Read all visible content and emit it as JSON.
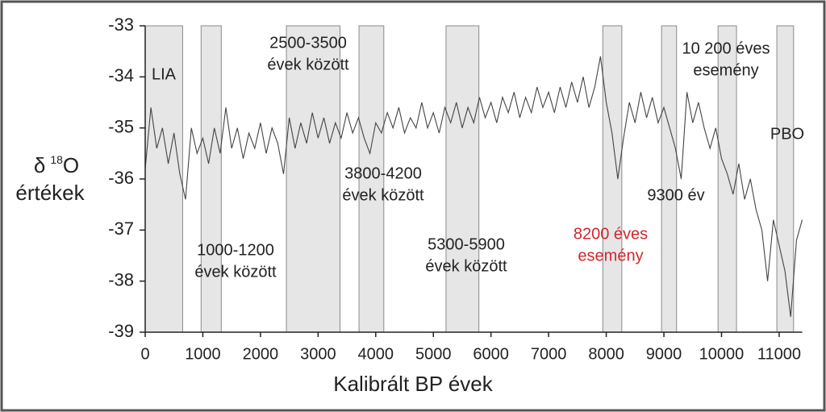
{
  "chart_data": {
    "type": "line",
    "y_label": {
      "symbol": "δ",
      "superscript": "18",
      "element": "O",
      "second_line": "értékek"
    },
    "x_label": "Kalibrált BP évek",
    "xlim": [
      0,
      11400
    ],
    "ylim": [
      -39,
      -33
    ],
    "xticks": [
      0,
      1000,
      2000,
      3000,
      4000,
      5000,
      6000,
      7000,
      8000,
      9000,
      10000,
      11000
    ],
    "yticks": [
      -33,
      -34,
      -35,
      -36,
      -37,
      -38,
      -39
    ],
    "color": "#444444",
    "band_color": "#e6e6e6",
    "bands": [
      [
        0,
        650
      ],
      [
        970,
        1320
      ],
      [
        2450,
        3380
      ],
      [
        3710,
        4140
      ],
      [
        5220,
        5790
      ],
      [
        7940,
        8270
      ],
      [
        8960,
        9220
      ],
      [
        9940,
        10260
      ],
      [
        10960,
        11250
      ]
    ],
    "annotations": [
      {
        "lines": [
          "LIA"
        ],
        "color": "#222222"
      },
      {
        "lines": [
          "1000-1200",
          "évek között"
        ],
        "color": "#222222"
      },
      {
        "lines": [
          "2500-3500",
          "évek között"
        ],
        "color": "#222222"
      },
      {
        "lines": [
          "3800-4200",
          "évek között"
        ],
        "color": "#222222"
      },
      {
        "lines": [
          "5300-5900",
          "évek között"
        ],
        "color": "#222222"
      },
      {
        "lines": [
          "8200 éves",
          "esemény"
        ],
        "color": "#d4262d"
      },
      {
        "lines": [
          "9300 év"
        ],
        "color": "#222222"
      },
      {
        "lines": [
          "10 200 éves",
          "esemény"
        ],
        "color": "#222222"
      },
      {
        "lines": [
          "PBO"
        ],
        "color": "#222222"
      }
    ],
    "x": [
      0,
      100,
      200,
      300,
      400,
      500,
      600,
      700,
      800,
      900,
      1000,
      1100,
      1200,
      1300,
      1400,
      1500,
      1600,
      1700,
      1800,
      1900,
      2000,
      2100,
      2200,
      2300,
      2400,
      2500,
      2600,
      2700,
      2800,
      2900,
      3000,
      3100,
      3200,
      3300,
      3400,
      3500,
      3600,
      3700,
      3800,
      3900,
      4000,
      4100,
      4200,
      4300,
      4400,
      4500,
      4600,
      4700,
      4800,
      4900,
      5000,
      5100,
      5200,
      5300,
      5400,
      5500,
      5600,
      5700,
      5800,
      5900,
      6000,
      6100,
      6200,
      6300,
      6400,
      6500,
      6600,
      6700,
      6800,
      6900,
      7000,
      7100,
      7200,
      7300,
      7400,
      7500,
      7600,
      7700,
      7800,
      7900,
      8000,
      8100,
      8200,
      8300,
      8400,
      8500,
      8600,
      8700,
      8800,
      8900,
      9000,
      9100,
      9200,
      9300,
      9400,
      9500,
      9600,
      9700,
      9800,
      9900,
      10000,
      10100,
      10200,
      10300,
      10400,
      10500,
      10600,
      10700,
      10800,
      10900,
      11000,
      11100,
      11200,
      11300,
      11400
    ],
    "values": [
      -35.8,
      -34.6,
      -35.4,
      -35.0,
      -35.7,
      -35.1,
      -35.9,
      -36.4,
      -35.0,
      -35.5,
      -35.2,
      -35.7,
      -35.0,
      -35.5,
      -34.6,
      -35.4,
      -35.0,
      -35.6,
      -35.1,
      -35.4,
      -34.9,
      -35.5,
      -35.0,
      -35.3,
      -35.9,
      -34.8,
      -35.4,
      -34.9,
      -35.3,
      -34.7,
      -35.2,
      -34.8,
      -35.3,
      -34.9,
      -35.2,
      -34.7,
      -35.1,
      -34.8,
      -35.2,
      -35.5,
      -34.9,
      -35.1,
      -34.7,
      -35.0,
      -34.6,
      -35.1,
      -34.8,
      -35.0,
      -34.5,
      -35.0,
      -34.7,
      -35.1,
      -34.6,
      -34.9,
      -34.5,
      -35.0,
      -34.6,
      -34.9,
      -34.4,
      -34.8,
      -34.5,
      -34.9,
      -34.4,
      -34.7,
      -34.3,
      -34.8,
      -34.4,
      -34.7,
      -34.2,
      -34.6,
      -34.3,
      -34.7,
      -34.2,
      -34.6,
      -34.1,
      -34.5,
      -34.0,
      -34.6,
      -34.2,
      -33.6,
      -34.5,
      -35.1,
      -36.0,
      -35.2,
      -34.5,
      -34.9,
      -34.3,
      -34.8,
      -34.4,
      -34.9,
      -34.6,
      -35.0,
      -35.4,
      -36.0,
      -34.3,
      -34.9,
      -34.5,
      -35.0,
      -35.4,
      -35.0,
      -35.6,
      -35.9,
      -36.3,
      -35.7,
      -36.4,
      -36.0,
      -36.6,
      -37.0,
      -38.0,
      -36.8,
      -37.3,
      -37.8,
      -38.7,
      -37.2,
      -36.8
    ]
  }
}
